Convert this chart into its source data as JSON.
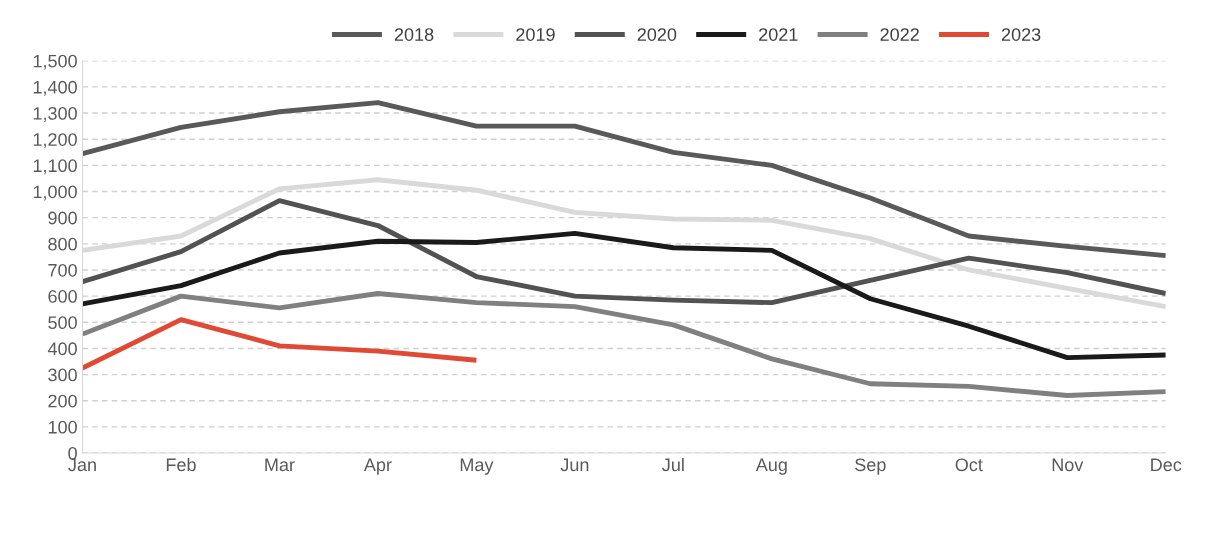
{
  "chart_data": {
    "type": "line",
    "categories": [
      "Jan",
      "Feb",
      "Mar",
      "Apr",
      "May",
      "Jun",
      "Jul",
      "Aug",
      "Sep",
      "Oct",
      "Nov",
      "Dec"
    ],
    "series": [
      {
        "name": "2018",
        "color": "#595959",
        "values": [
          1145,
          1245,
          1305,
          1340,
          1250,
          1250,
          1150,
          1100,
          975,
          830,
          790,
          755
        ]
      },
      {
        "name": "2019",
        "color": "#d9d9d9",
        "values": [
          775,
          830,
          1010,
          1045,
          1005,
          920,
          895,
          890,
          820,
          700,
          630,
          560
        ]
      },
      {
        "name": "2020",
        "color": "#525252",
        "values": [
          655,
          770,
          965,
          870,
          675,
          600,
          585,
          575,
          660,
          745,
          690,
          610
        ]
      },
      {
        "name": "2021",
        "color": "#1a1a1a",
        "values": [
          570,
          640,
          765,
          810,
          805,
          840,
          785,
          775,
          590,
          485,
          365,
          375
        ]
      },
      {
        "name": "2022",
        "color": "#808080",
        "values": [
          455,
          600,
          555,
          610,
          575,
          560,
          490,
          360,
          265,
          255,
          220,
          235
        ]
      },
      {
        "name": "2023",
        "color": "#e04a35",
        "values": [
          325,
          510,
          410,
          390,
          355,
          null,
          null,
          null,
          null,
          null,
          null,
          null
        ]
      }
    ],
    "ylim": [
      0,
      1500
    ],
    "yticks": [
      0,
      100,
      200,
      300,
      400,
      500,
      600,
      700,
      800,
      900,
      {
        "value": 1000,
        "label": "1,000"
      },
      {
        "value": 1100,
        "label": "1,100"
      },
      {
        "value": 1200,
        "label": "1,200"
      },
      {
        "value": 1300,
        "label": "1,300"
      },
      {
        "value": 1400,
        "label": "1,400"
      },
      {
        "value": 1500,
        "label": "1,500"
      }
    ],
    "grid": "y",
    "legend": "top right",
    "marker": "none",
    "line_style": "solid"
  }
}
